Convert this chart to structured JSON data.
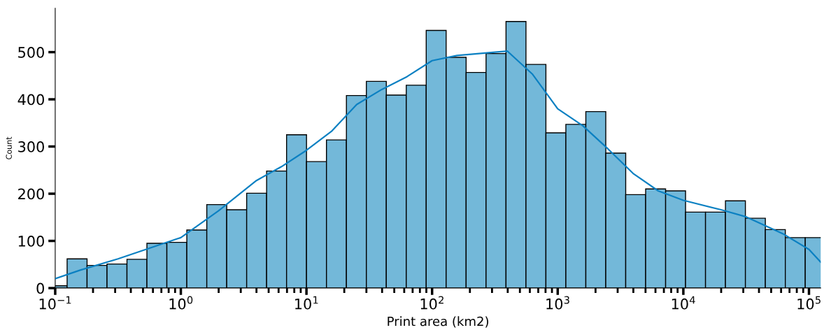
{
  "chart_data": {
    "type": "histogram",
    "xlabel": "Print area (km2)",
    "ylabel": "Count",
    "log": "x",
    "grid": false,
    "xlim": [
      0.1,
      124000
    ],
    "xticks": [
      {
        "value": 0.1,
        "label": "10$^{−1}$"
      },
      {
        "value": 1,
        "label": "10$^{0}$"
      },
      {
        "value": 10,
        "label": "10$^{1}$"
      },
      {
        "value": 100,
        "label": "10$^{2}$"
      },
      {
        "value": 1000,
        "label": "10$^{3}$"
      },
      {
        "value": 10000,
        "label": "10$^{4}$"
      },
      {
        "value": 100000,
        "label": "10$^{5}$"
      }
    ],
    "ylim": [
      0,
      593
    ],
    "yticks": [
      0,
      100,
      200,
      300,
      400,
      500
    ],
    "series": [
      {
        "color": "#73b8d9",
        "bins": [
          0.0863,
          0.1244,
          0.1793,
          0.2585,
          0.3726,
          0.537,
          0.774,
          1.116,
          1.609,
          2.319,
          3.342,
          4.818,
          6.945,
          10.01,
          14.43,
          20.8,
          29.98,
          43.21,
          62.29,
          89.8,
          129.4,
          186.6,
          268.9,
          387.6,
          558.8,
          805.4,
          1161,
          1674,
          2413,
          3477,
          5012,
          7225,
          10414,
          15012,
          21638,
          31189,
          44957,
          64803,
          93408,
          134640
        ],
        "values": [
          5,
          62,
          48,
          51,
          61,
          95,
          97,
          123,
          177,
          166,
          201,
          248,
          325,
          268,
          314,
          408,
          438,
          409,
          430,
          546,
          489,
          457,
          497,
          565,
          474,
          329,
          347,
          374,
          286,
          198,
          210,
          206,
          161,
          161,
          185,
          148,
          124,
          107,
          107
        ]
      },
      {
        "type": "line",
        "color": "#0b80c2",
        "x": [
          0.1,
          0.158,
          0.316,
          1,
          2,
          4,
          6.3,
          10,
          15.8,
          25.1,
          39.8,
          63.1,
          100,
          158,
          316,
          398,
          631,
          1000,
          1585,
          2512,
          3981,
          6310,
          10000,
          19953,
          31623,
          63096,
          100000,
          124000
        ],
        "values": [
          20,
          38,
          62,
          107,
          164,
          228,
          257,
          292,
          332,
          389,
          421,
          448,
          482,
          493,
          500,
          502,
          453,
          380,
          344,
          295,
          243,
          206,
          186,
          166,
          151,
          114,
          82,
          55
        ]
      }
    ]
  }
}
